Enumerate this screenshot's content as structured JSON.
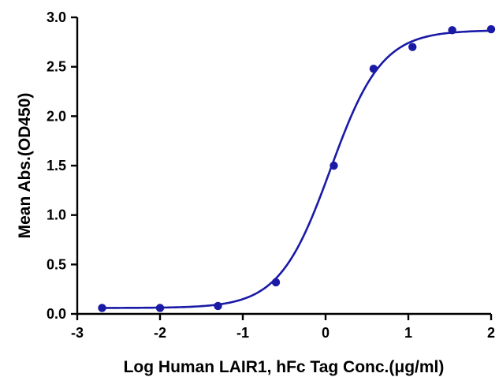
{
  "chart_data": {
    "type": "scatter",
    "title": "",
    "xlabel": "Log Human LAIR1, hFc Tag Conc.(μg/ml)",
    "ylabel": "Mean Abs.(OD450)",
    "xlim": [
      -3,
      2
    ],
    "ylim": [
      0,
      3.0
    ],
    "x_ticks": [
      -3,
      -2,
      -1,
      0,
      1,
      2
    ],
    "x_tick_labels": [
      "-3",
      "-2",
      "-1",
      "0",
      "1",
      "2"
    ],
    "y_ticks": [
      0,
      0.5,
      1.0,
      1.5,
      2.0,
      2.5,
      3.0
    ],
    "y_tick_labels": [
      "0.0",
      "0.5",
      "1.0",
      "1.5",
      "2.0",
      "2.5",
      "3.0"
    ],
    "grid": false,
    "legend": "none",
    "series": [
      {
        "points": [
          {
            "x": -2.7,
            "y": 0.06
          },
          {
            "x": -2.0,
            "y": 0.06
          },
          {
            "x": -1.3,
            "y": 0.08
          },
          {
            "x": -0.6,
            "y": 0.32
          },
          {
            "x": 0.1,
            "y": 1.5
          },
          {
            "x": 0.58,
            "y": 2.48
          },
          {
            "x": 1.05,
            "y": 2.7
          },
          {
            "x": 1.53,
            "y": 2.87
          },
          {
            "x": 2.0,
            "y": 2.88
          }
        ],
        "fit": {
          "model": "4PL",
          "bottom": 0.06,
          "top": 2.87,
          "log_ec50": 0.06,
          "hill_slope": 1.4
        },
        "color": "#1a1aa6"
      }
    ]
  }
}
